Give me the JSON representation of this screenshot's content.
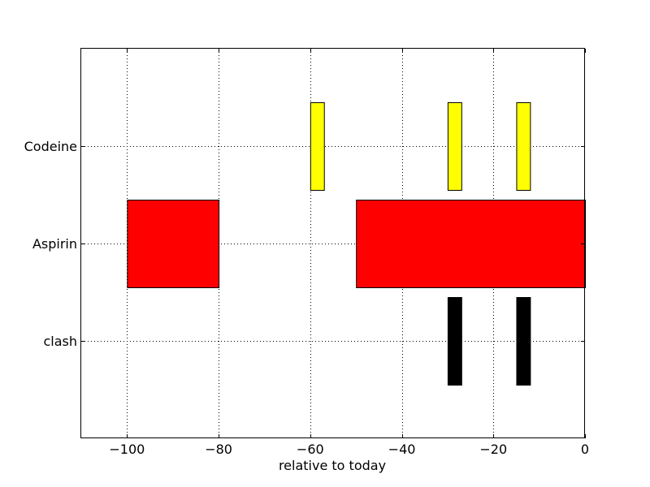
{
  "chart_data": {
    "type": "broken_barh",
    "title": "",
    "xlabel": "relative to today",
    "ylabel": "",
    "xlim": [
      -110,
      0
    ],
    "xticks": [
      -100,
      -80,
      -60,
      -40,
      -20,
      0
    ],
    "xtick_labels": [
      "−100",
      "−80",
      "−60",
      "−40",
      "−20",
      "0"
    ],
    "grid": true,
    "categories": [
      "Codeine",
      "Aspirin",
      "clash"
    ],
    "series": [
      {
        "category": "Codeine",
        "color": "#ffff00",
        "spans": [
          [
            -60,
            3
          ],
          [
            -30,
            3
          ],
          [
            -15,
            3
          ]
        ]
      },
      {
        "category": "Aspirin",
        "color": "#ff0000",
        "spans": [
          [
            -100,
            20
          ],
          [
            -50,
            50
          ]
        ]
      },
      {
        "category": "clash",
        "color": "#000000",
        "spans": [
          [
            -30,
            3
          ],
          [
            -15,
            3
          ]
        ]
      }
    ]
  }
}
